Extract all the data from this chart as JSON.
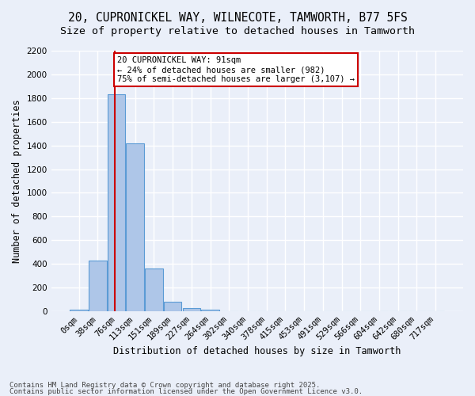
{
  "title_line1": "20, CUPRONICKEL WAY, WILNECOTE, TAMWORTH, B77 5FS",
  "title_line2": "Size of property relative to detached houses in Tamworth",
  "xlabel": "Distribution of detached houses by size in Tamworth",
  "ylabel": "Number of detached properties",
  "footer_line1": "Contains HM Land Registry data © Crown copyright and database right 2025.",
  "footer_line2": "Contains public sector information licensed under the Open Government Licence v3.0.",
  "bin_labels": [
    "0sqm",
    "38sqm",
    "76sqm",
    "113sqm",
    "151sqm",
    "189sqm",
    "227sqm",
    "264sqm",
    "302sqm",
    "340sqm",
    "378sqm",
    "415sqm",
    "453sqm",
    "491sqm",
    "529sqm",
    "566sqm",
    "604sqm",
    "642sqm",
    "680sqm",
    "717sqm"
  ],
  "bar_values": [
    15,
    430,
    1830,
    1420,
    360,
    80,
    30,
    15,
    0,
    0,
    0,
    0,
    0,
    0,
    0,
    0,
    0,
    0,
    0,
    0
  ],
  "bar_color": "#aec6e8",
  "bar_edge_color": "#5b9bd5",
  "annotation_text": "20 CUPRONICKEL WAY: 91sqm\n← 24% of detached houses are smaller (982)\n75% of semi-detached houses are larger (3,107) →",
  "annotation_box_color": "#ffffff",
  "annotation_box_edge_color": "#cc0000",
  "vline_color": "#cc0000",
  "ylim": [
    0,
    2200
  ],
  "yticks": [
    0,
    200,
    400,
    600,
    800,
    1000,
    1200,
    1400,
    1600,
    1800,
    2000,
    2200
  ],
  "bg_color": "#eaeff9",
  "plot_bg_color": "#eaeff9",
  "grid_color": "#ffffff",
  "title_fontsize": 10.5,
  "subtitle_fontsize": 9.5,
  "axis_label_fontsize": 8.5,
  "tick_fontsize": 7.5,
  "footer_fontsize": 6.5
}
